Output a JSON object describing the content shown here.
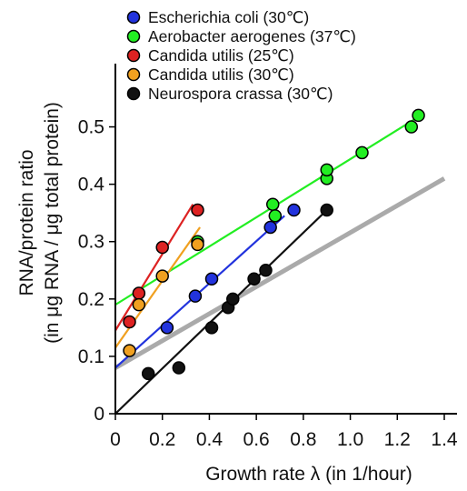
{
  "chart_data": {
    "type": "scatter",
    "xlabel": "Growth rate λ (in 1/hour)",
    "ylabel_line1": "RNA/protein ratio",
    "ylabel_line2": "(in μg RNA / μg total protein)",
    "xlim": [
      0,
      1.4
    ],
    "ylim": [
      0,
      0.55
    ],
    "x_ticks": [
      "0",
      "0.2",
      "0.4",
      "0.6",
      "0.8",
      "1.0",
      "1.2",
      "1.4"
    ],
    "y_ticks": [
      "0",
      "0.1",
      "0.2",
      "0.3",
      "0.4",
      "0.5"
    ],
    "grid": false,
    "legend_position": "top-left",
    "series": [
      {
        "name": "Escherichia coli (30℃)",
        "color": "#2233dd",
        "points": [
          [
            0.22,
            0.15
          ],
          [
            0.34,
            0.205
          ],
          [
            0.41,
            0.235
          ],
          [
            0.66,
            0.325
          ],
          [
            0.76,
            0.355
          ]
        ],
        "fit": [
          [
            0.0,
            0.08
          ],
          [
            0.72,
            0.345
          ]
        ]
      },
      {
        "name": "Aerobacter aerogenes (37℃)",
        "color": "#22ee22",
        "points": [
          [
            0.35,
            0.3
          ],
          [
            0.67,
            0.365
          ],
          [
            0.68,
            0.345
          ],
          [
            0.9,
            0.41
          ],
          [
            0.9,
            0.425
          ],
          [
            1.05,
            0.455
          ],
          [
            1.26,
            0.5
          ],
          [
            1.29,
            0.52
          ]
        ],
        "fit": [
          [
            0.0,
            0.19
          ],
          [
            1.3,
            0.52
          ]
        ]
      },
      {
        "name": "Candida utilis (25℃)",
        "color": "#dd2222",
        "points": [
          [
            0.06,
            0.16
          ],
          [
            0.1,
            0.21
          ],
          [
            0.2,
            0.29
          ],
          [
            0.35,
            0.355
          ]
        ],
        "fit": [
          [
            0.0,
            0.145
          ],
          [
            0.33,
            0.365
          ]
        ]
      },
      {
        "name": "Candida utilis (30℃)",
        "color": "#f0a020",
        "points": [
          [
            0.06,
            0.11
          ],
          [
            0.1,
            0.19
          ],
          [
            0.2,
            0.24
          ],
          [
            0.35,
            0.295
          ]
        ],
        "fit": [
          [
            0.0,
            0.115
          ],
          [
            0.36,
            0.325
          ]
        ]
      },
      {
        "name": "Neurospora crassa (30℃)",
        "color": "#111111",
        "points": [
          [
            0.14,
            0.07
          ],
          [
            0.27,
            0.08
          ],
          [
            0.41,
            0.15
          ],
          [
            0.48,
            0.185
          ],
          [
            0.5,
            0.2
          ],
          [
            0.59,
            0.235
          ],
          [
            0.64,
            0.25
          ],
          [
            0.9,
            0.355
          ]
        ],
        "fit": [
          [
            0.0,
            -0.005
          ],
          [
            0.9,
            0.355
          ]
        ]
      }
    ],
    "reference_line": {
      "color": "#aaaaaa",
      "points": [
        [
          0.0,
          0.08
        ],
        [
          1.4,
          0.41
        ]
      ]
    }
  }
}
